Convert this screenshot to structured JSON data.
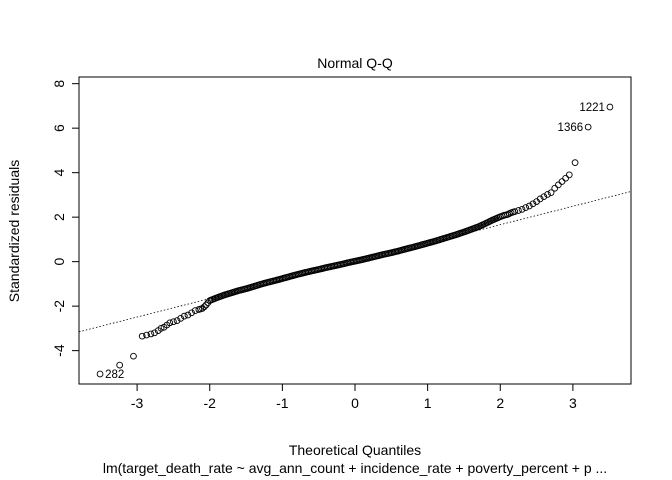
{
  "chart_data": {
    "type": "scatter",
    "title": "Normal Q-Q",
    "xlabel": "Theoretical Quantiles",
    "ylabel": "Standardized residuals",
    "subtitle": "lm(target_death_rate ~ avg_ann_count + incidence_rate + poverty_percent + p ...",
    "xlim": [
      -3.8,
      3.8
    ],
    "ylim": [
      -5.5,
      8.3
    ],
    "xticks": [
      -3,
      -2,
      -1,
      0,
      1,
      2,
      3
    ],
    "yticks": [
      -4,
      -2,
      0,
      2,
      4,
      6,
      8
    ],
    "grid": false,
    "reference_line": {
      "intercept": 0.0,
      "slope": 0.83,
      "style": "dotted"
    },
    "labeled_points": [
      {
        "label": "1221",
        "x": 3.51,
        "y": 6.95
      },
      {
        "label": "1366",
        "x": 3.21,
        "y": 6.05
      },
      {
        "label": "282",
        "x": -3.51,
        "y": -5.05
      }
    ],
    "series": [
      {
        "x": [
          -3.51,
          -3.24,
          -3.05,
          -2.93,
          -2.87,
          -2.81,
          -2.76,
          -2.71,
          -2.67,
          -2.63,
          -2.59,
          -2.55,
          -2.5,
          -2.45,
          -2.4,
          -2.35,
          -2.3,
          -2.25,
          -2.2,
          -2.15,
          -2.1,
          -2.05,
          -2.0,
          -1.9,
          -1.8,
          -1.7,
          -1.6,
          -1.5,
          -1.4,
          -1.3,
          -1.2,
          -1.1,
          -1.0,
          -0.9,
          -0.8,
          -0.7,
          -0.6,
          -0.5,
          -0.4,
          -0.3,
          -0.2,
          -0.1,
          0.0,
          0.1,
          0.2,
          0.3,
          0.4,
          0.5,
          0.6,
          0.7,
          0.8,
          0.9,
          1.0,
          1.1,
          1.2,
          1.3,
          1.4,
          1.5,
          1.6,
          1.7,
          1.8,
          1.9,
          2.0,
          2.05,
          2.1,
          2.15,
          2.2,
          2.25,
          2.3,
          2.35,
          2.4,
          2.45,
          2.5,
          2.55,
          2.6,
          2.65,
          2.7,
          2.75,
          2.8,
          2.85,
          2.9,
          2.95,
          3.03,
          3.21,
          3.51
        ],
        "y": [
          -5.05,
          -4.65,
          -4.25,
          -3.35,
          -3.3,
          -3.25,
          -3.2,
          -3.1,
          -3.0,
          -2.95,
          -2.85,
          -2.75,
          -2.7,
          -2.65,
          -2.55,
          -2.45,
          -2.4,
          -2.3,
          -2.2,
          -2.15,
          -2.1,
          -1.95,
          -1.75,
          -1.62,
          -1.5,
          -1.4,
          -1.3,
          -1.22,
          -1.12,
          -1.02,
          -0.93,
          -0.85,
          -0.76,
          -0.67,
          -0.58,
          -0.5,
          -0.42,
          -0.35,
          -0.27,
          -0.2,
          -0.13,
          -0.05,
          0.02,
          0.09,
          0.17,
          0.25,
          0.33,
          0.4,
          0.48,
          0.57,
          0.65,
          0.74,
          0.83,
          0.92,
          1.02,
          1.12,
          1.22,
          1.33,
          1.45,
          1.57,
          1.72,
          1.88,
          2.02,
          2.08,
          2.12,
          2.2,
          2.25,
          2.3,
          2.35,
          2.43,
          2.5,
          2.6,
          2.7,
          2.82,
          2.92,
          3.02,
          3.1,
          3.3,
          3.45,
          3.6,
          3.75,
          3.9,
          4.45,
          6.05,
          6.95
        ]
      }
    ]
  }
}
